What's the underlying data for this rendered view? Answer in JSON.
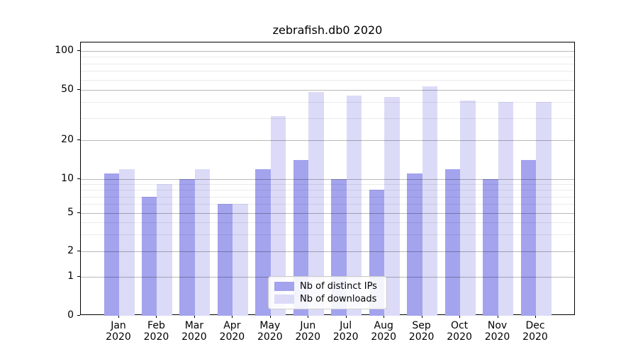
{
  "title": "zebrafish.db0 2020",
  "chart_data": {
    "type": "bar",
    "title": "zebrafish.db0 2020",
    "categories": [
      "Jan",
      "Feb",
      "Mar",
      "Apr",
      "May",
      "Jun",
      "Jul",
      "Aug",
      "Sep",
      "Oct",
      "Nov",
      "Dec"
    ],
    "year_label": "2020",
    "series": [
      {
        "name": "Nb of distinct IPs",
        "color": "#a3a3ee",
        "values": [
          11,
          7,
          10,
          6,
          12,
          14,
          10,
          8,
          11,
          12,
          10,
          14
        ]
      },
      {
        "name": "Nb of downloads",
        "color": "#dbdbf8",
        "values": [
          12,
          9,
          12,
          6,
          31,
          48,
          45,
          44,
          53,
          41,
          40,
          40
        ]
      }
    ],
    "ylabel": "",
    "xlabel": "",
    "yscale": "log-like",
    "ylim": [
      0,
      117
    ],
    "y_major_ticks": [
      0,
      1,
      2,
      5,
      10,
      20,
      50,
      100
    ],
    "y_minor_ticks": [
      3,
      4,
      6,
      7,
      8,
      9,
      30,
      40,
      60,
      70,
      80,
      90
    ],
    "grid": "horizontal major and minor gridlines",
    "legend_position": "lower center inside plot"
  },
  "legend": {
    "items": [
      {
        "label": "Nb of distinct IPs",
        "color": "#a3a3ee"
      },
      {
        "label": "Nb of downloads",
        "color": "#dbdbf8"
      }
    ]
  },
  "colors": {
    "distinct_ips": "#a3a3ee",
    "downloads": "#dbdbf8",
    "spine": "#000000",
    "major_grid": "#b8b8b8",
    "minor_grid": "#e8e8e8",
    "legend_border": "#cccccc",
    "background": "#ffffff"
  }
}
